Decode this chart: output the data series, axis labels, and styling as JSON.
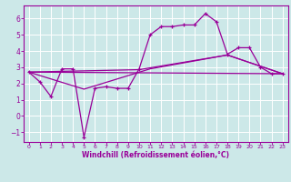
{
  "xlabel": "Windchill (Refroidissement éolien,°C)",
  "background_color": "#cce8e8",
  "grid_color": "#aadddd",
  "line_color": "#990099",
  "xlim": [
    -0.5,
    23.5
  ],
  "ylim": [
    -1.6,
    6.8
  ],
  "yticks": [
    -1,
    0,
    1,
    2,
    3,
    4,
    5,
    6
  ],
  "xticks": [
    0,
    1,
    2,
    3,
    4,
    5,
    6,
    7,
    8,
    9,
    10,
    11,
    12,
    13,
    14,
    15,
    16,
    17,
    18,
    19,
    20,
    21,
    22,
    23
  ],
  "series1_x": [
    0,
    1,
    2,
    3,
    4,
    5,
    6,
    7,
    8,
    9,
    10,
    11,
    12,
    13,
    14,
    15,
    16,
    17,
    18,
    19,
    20,
    21,
    22,
    23
  ],
  "series1_y": [
    2.7,
    2.1,
    1.2,
    2.9,
    2.9,
    -1.3,
    1.7,
    1.8,
    1.7,
    1.7,
    2.9,
    5.0,
    5.5,
    5.5,
    5.6,
    5.6,
    6.3,
    5.8,
    3.8,
    4.2,
    4.2,
    3.0,
    2.6,
    2.6
  ],
  "series2_x": [
    0,
    23
  ],
  "series2_y": [
    2.7,
    2.6
  ],
  "series3_x": [
    0,
    10,
    18,
    23
  ],
  "series3_y": [
    2.7,
    2.85,
    3.75,
    2.6
  ],
  "series4_x": [
    0,
    5,
    11,
    18,
    23
  ],
  "series4_y": [
    2.7,
    1.65,
    2.9,
    3.75,
    2.6
  ]
}
